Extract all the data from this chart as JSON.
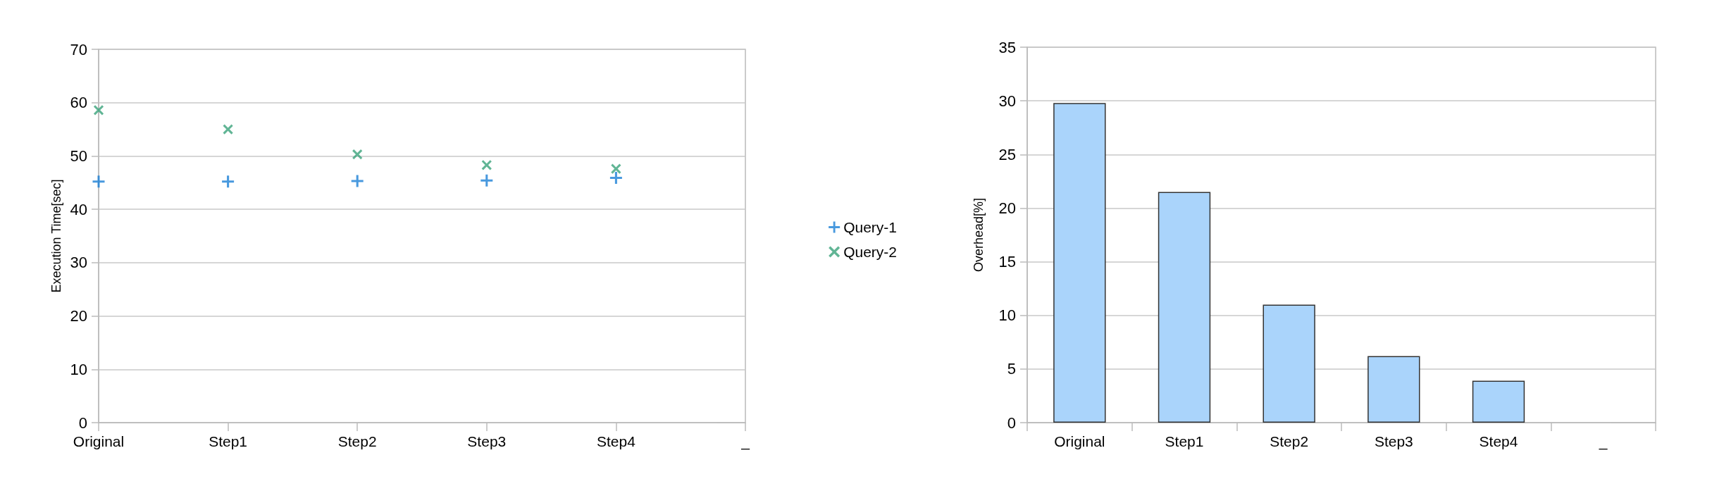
{
  "chart_data": [
    {
      "type": "scatter",
      "ylabel": "Execution Time[sec]",
      "categories": [
        "Original",
        "Step1",
        "Step2",
        "Step3",
        "Step4",
        "_"
      ],
      "ylim": [
        0,
        70
      ],
      "yticks": [
        0,
        10,
        20,
        30,
        40,
        50,
        60,
        70
      ],
      "grid": "y",
      "legend": "right",
      "series": [
        {
          "name": "Query-1",
          "color": "#1a7fd6",
          "marker": "plus",
          "values": [
            45.2,
            45.2,
            45.3,
            45.4,
            45.9,
            null
          ]
        },
        {
          "name": "Query-2",
          "color": "#3aa37a",
          "marker": "cross",
          "values": [
            58.6,
            55.0,
            50.3,
            48.3,
            47.6,
            null
          ]
        }
      ]
    },
    {
      "type": "bar",
      "ylabel": "Overhead[%]",
      "categories": [
        "Original",
        "Step1",
        "Step2",
        "Step3",
        "Step4",
        "_"
      ],
      "ylim": [
        0,
        35
      ],
      "yticks": [
        0,
        5,
        10,
        15,
        20,
        25,
        30,
        35
      ],
      "grid": "y",
      "legend": false,
      "series": [
        {
          "color": "#aad4fb",
          "values": [
            29.8,
            21.5,
            11.0,
            6.2,
            3.9,
            null
          ]
        }
      ]
    }
  ]
}
